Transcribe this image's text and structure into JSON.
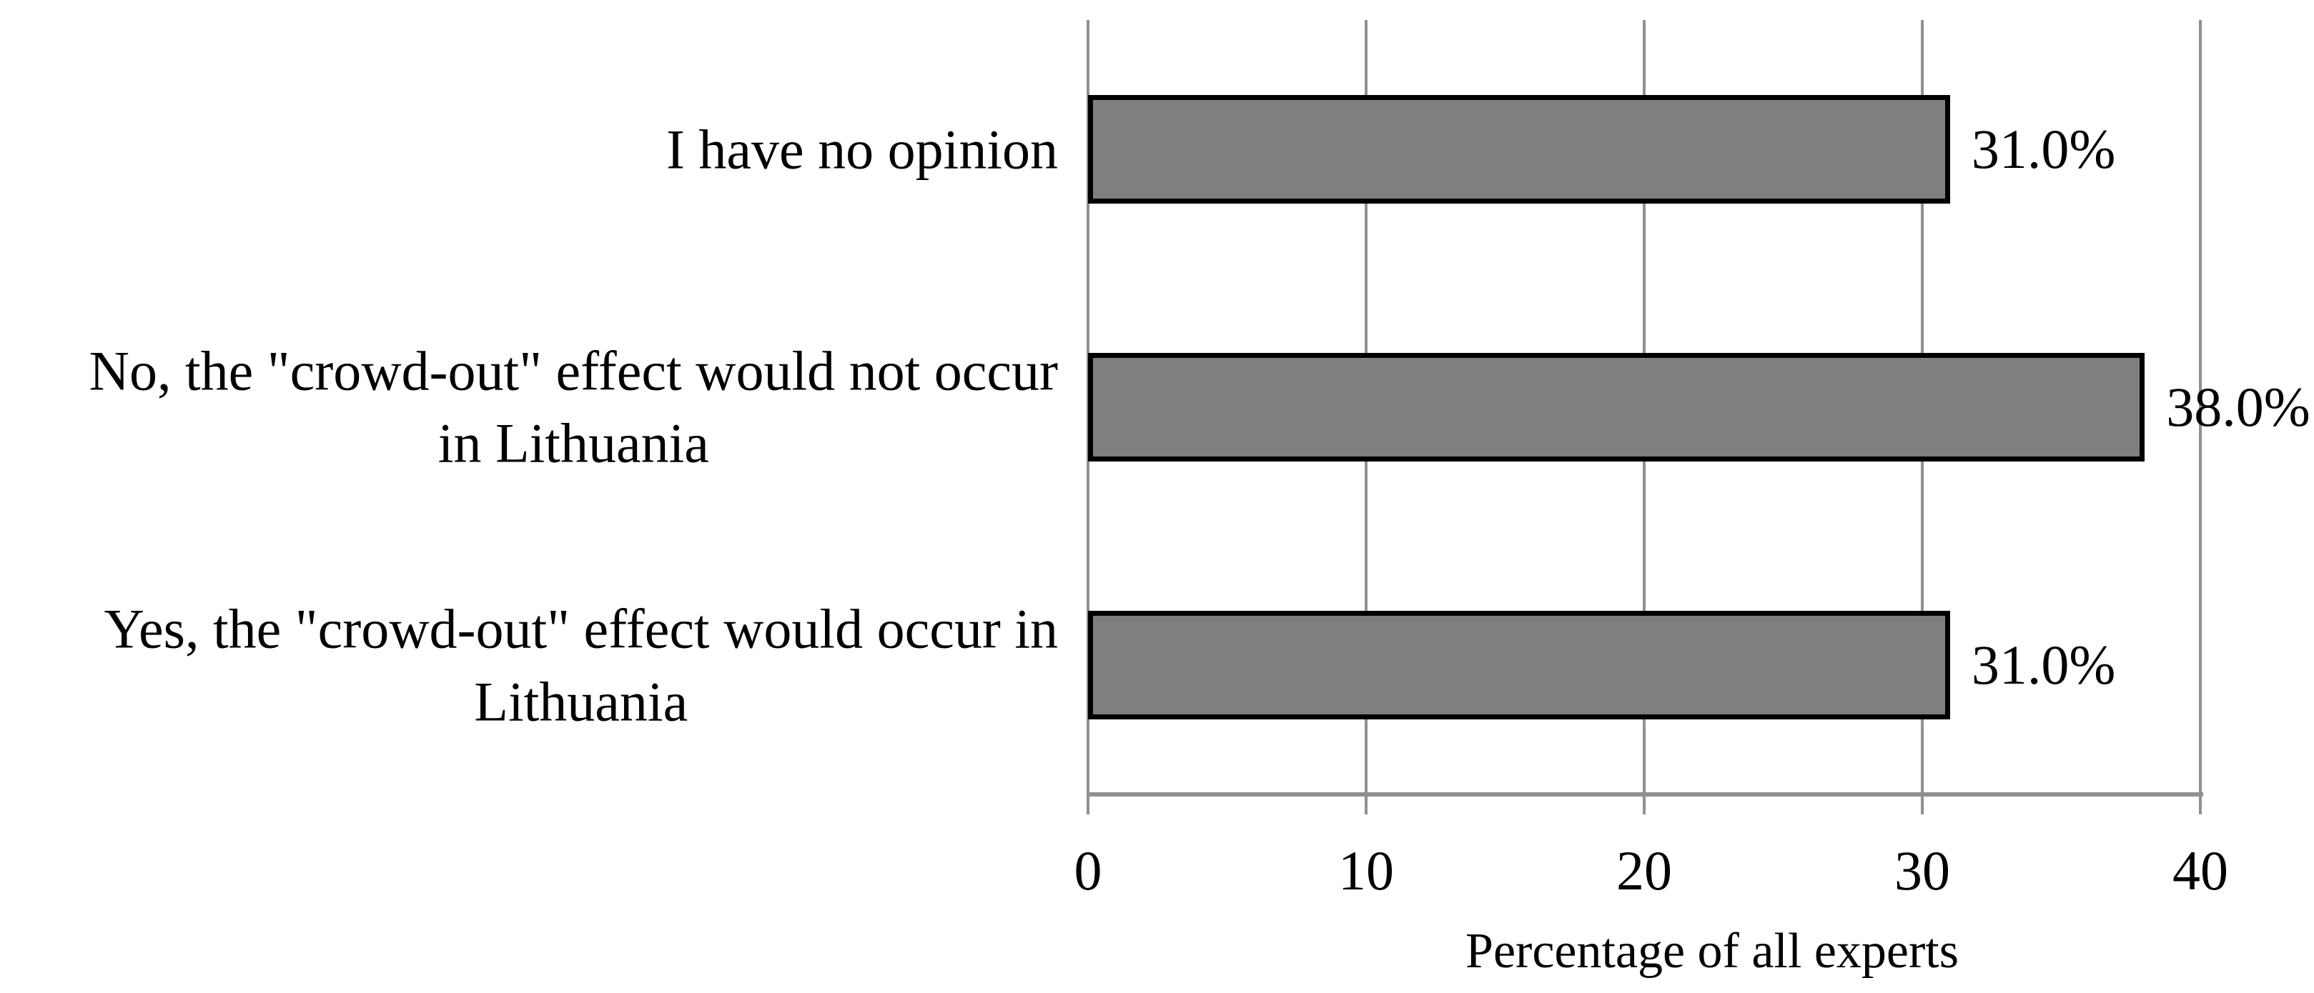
{
  "chart_data": {
    "type": "bar",
    "orientation": "horizontal",
    "title": "",
    "xlabel": "Percentage of all experts",
    "ylabel": "",
    "xlim": [
      0,
      40
    ],
    "xticks": [
      0,
      10,
      20,
      30,
      40
    ],
    "grid": "vertical-gridlines-on",
    "legend": "none",
    "categories": [
      "I have no opinion",
      "No, the \"crowd-out\" effect would not occur in Lithuania",
      "Yes, the \"crowd-out\" effect would occur in Lithuania"
    ],
    "values": [
      31.0,
      38.0,
      31.0
    ],
    "bars": [
      {
        "category_lines": [
          "I have no opinion"
        ],
        "value": 31.0,
        "value_label": "31.0%"
      },
      {
        "category_lines": [
          "No, the \"crowd-out\" effect would not occur",
          "in Lithuania"
        ],
        "value": 38.0,
        "value_label": "38.0%"
      },
      {
        "category_lines": [
          "Yes, the \"crowd-out\" effect would occur in",
          "Lithuania"
        ],
        "value": 31.0,
        "value_label": "31.0%"
      }
    ],
    "tick_labels": [
      "0",
      "10",
      "20",
      "30",
      "40"
    ],
    "colors": {
      "bar_fill": "#7F7F7F",
      "bar_border": "#000000",
      "gridline": "#909090",
      "axis_line": "#909090",
      "text": "#000000",
      "background": "#FFFFFF"
    }
  }
}
